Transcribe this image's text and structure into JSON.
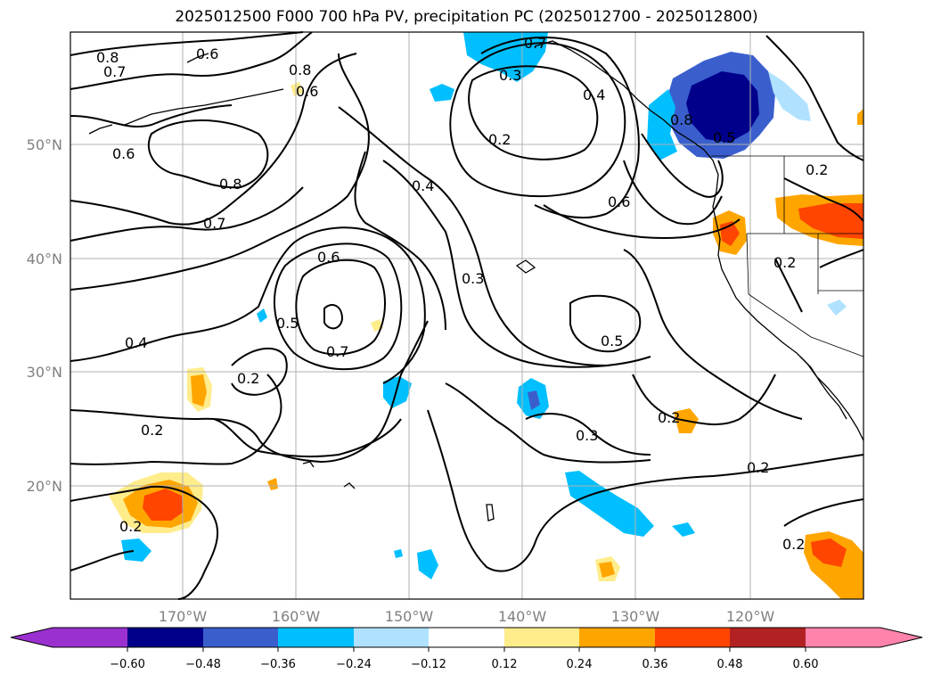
{
  "title": "2025012500 F000 700 hPa PV, precipitation PC (2025012700 - 2025012800)",
  "map": {
    "lat_labels": [
      "50°N",
      "40°N",
      "30°N",
      "20°N"
    ],
    "lon_labels": [
      "170°W",
      "160°W",
      "150°W",
      "140°W",
      "130°W",
      "120°W"
    ],
    "contour_labels": [
      "0.8",
      "0.7",
      "0.6",
      "0.8",
      "0.6",
      "0.7",
      "0.3",
      "0.2",
      "0.4",
      "0.8",
      "0.5",
      "0.6",
      "0.8",
      "0.7",
      "0.4",
      "0.6",
      "0.3",
      "0.6",
      "0.5",
      "0.7",
      "0.4",
      "0.2",
      "0.5",
      "0.2",
      "0.3",
      "0.2",
      "0.2",
      "0.2",
      "0.2",
      "0.2",
      "0.2"
    ]
  },
  "colorbar": {
    "colors": [
      "#9b30d0",
      "#00008b",
      "#3a5fcd",
      "#00bfff",
      "#b0e2ff",
      "#ffffff",
      "#ffec8b",
      "#ffa500",
      "#ff4500",
      "#b22222",
      "#ff83aa"
    ],
    "tick_labels": [
      "−0.60",
      "−0.48",
      "−0.36",
      "−0.24",
      "−0.12",
      "0.12",
      "0.24",
      "0.36",
      "0.48",
      "0.60"
    ]
  }
}
